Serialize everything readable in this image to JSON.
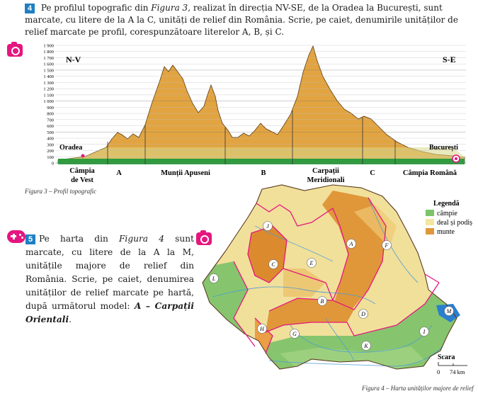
{
  "task4": {
    "number": "4",
    "text_a": " Pe profilul topografic din ",
    "fig_ref": "Figura 3",
    "text_b": ", realizat în direcția NV-SE, de la Oradea la București, sunt marcate, cu litere de la A la C, unități de relief din România. Scrie, pe caiet, denumirile unităților de relief marcate pe profil, corespunzătoare literelor A, B, și C."
  },
  "task5": {
    "number": "5",
    "text_a": "Pe harta din ",
    "fig_ref": "Figura 4",
    "text_b": " sunt marcate, cu litere de la A la M, unitățile majore de relief din România. Scrie, pe caiet, denumirea unităților de relief marcate pe hartă, după următorul model: ",
    "example": "A – Carpații Orientali",
    "text_c": "."
  },
  "profile": {
    "direction_left": "N-V",
    "direction_right": "S-E",
    "y_ticks": [
      "0",
      "100",
      "200",
      "300",
      "400",
      "500",
      "600",
      "700",
      "800",
      "900",
      "1 000",
      "1 100",
      "1 200",
      "1 300",
      "1 400",
      "1 500",
      "1 600",
      "1 700",
      "1 800",
      "1 900"
    ],
    "city_left": "Oradea",
    "city_right": "București",
    "bottom_labels": [
      "Câmpia",
      "de Vest",
      "A",
      "Munții Apuseni",
      "B",
      "Carpații",
      "Meridionali",
      "C",
      "Câmpia Română"
    ],
    "caption_a": "Figura 3 – ",
    "caption_b": "Profil topografic",
    "colors": {
      "plain": "#2e9d3e",
      "hill": "#d9d98a",
      "mountain": "#e0a63a"
    }
  },
  "map": {
    "legend_title": "Legendă",
    "legend_items": [
      {
        "label": "câmpie",
        "color": "#7cc46a"
      },
      {
        "label": "deal și podiș",
        "color": "#f3e6a0"
      },
      {
        "label": "munte",
        "color": "#e0973a"
      }
    ],
    "scale_title": "Scara",
    "scale_zero": "0",
    "scale_value": "74 km",
    "unit_letters": [
      "A",
      "B",
      "C",
      "D",
      "E",
      "F",
      "G",
      "H",
      "I",
      "J",
      "K",
      "L",
      "M"
    ],
    "caption_a": "Figura 4 – ",
    "caption_b": "Harta unităților majore de relief"
  }
}
